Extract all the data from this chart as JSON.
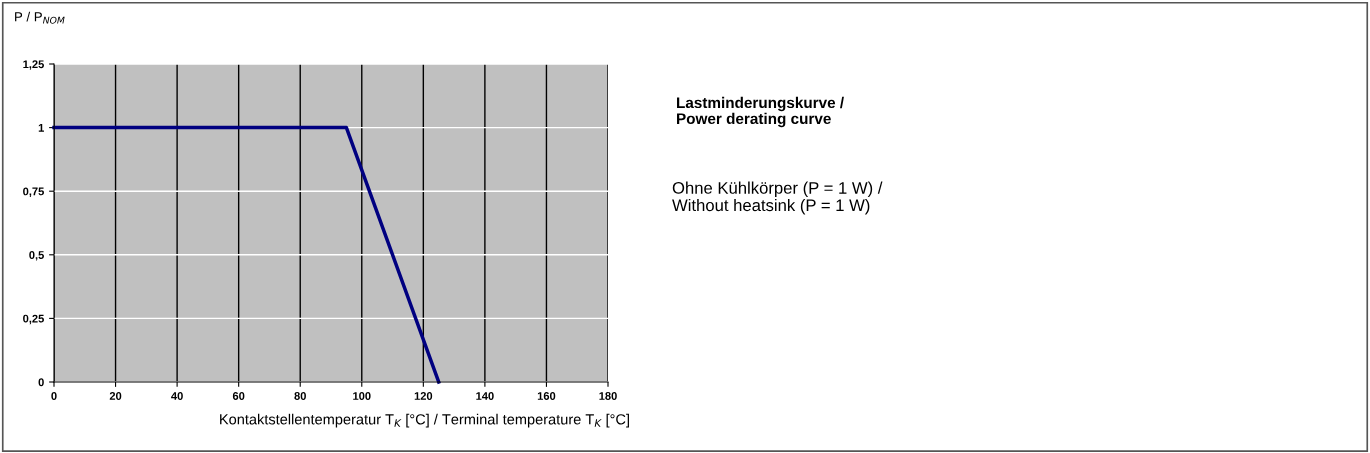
{
  "chart_data": {
    "type": "line",
    "ylabel": "P / P$_{NOM}$",
    "xlabel": "Kontaktstellentemperatur T$_{K}$ [°C] / Terminal temperature T$_{K}$ [°C]",
    "annotations": [
      "Lastminderungskurve /\nPower derating curve",
      "Ohne Kühlkörper (P = 1 W) /\nWithout heatsink (P = 1 W)"
    ],
    "series": [
      {
        "color": "#000080",
        "x": [
          0,
          95,
          125
        ],
        "values": [
          1,
          1,
          0
        ]
      }
    ],
    "xlim": [
      0,
      180
    ],
    "xticks": [
      0,
      20,
      40,
      60,
      80,
      100,
      120,
      140,
      160,
      180
    ],
    "ylim": [
      0,
      1.25
    ],
    "yticks": [
      0,
      {
        "value": 0.25,
        "label": "0,25"
      },
      {
        "value": 0.5,
        "label": "0,5"
      },
      {
        "value": 0.75,
        "label": "0,75"
      },
      1,
      {
        "value": 1.25,
        "label": "1,25"
      }
    ],
    "grid": true,
    "legend": false,
    "marker": "none",
    "line_style": "solid"
  }
}
